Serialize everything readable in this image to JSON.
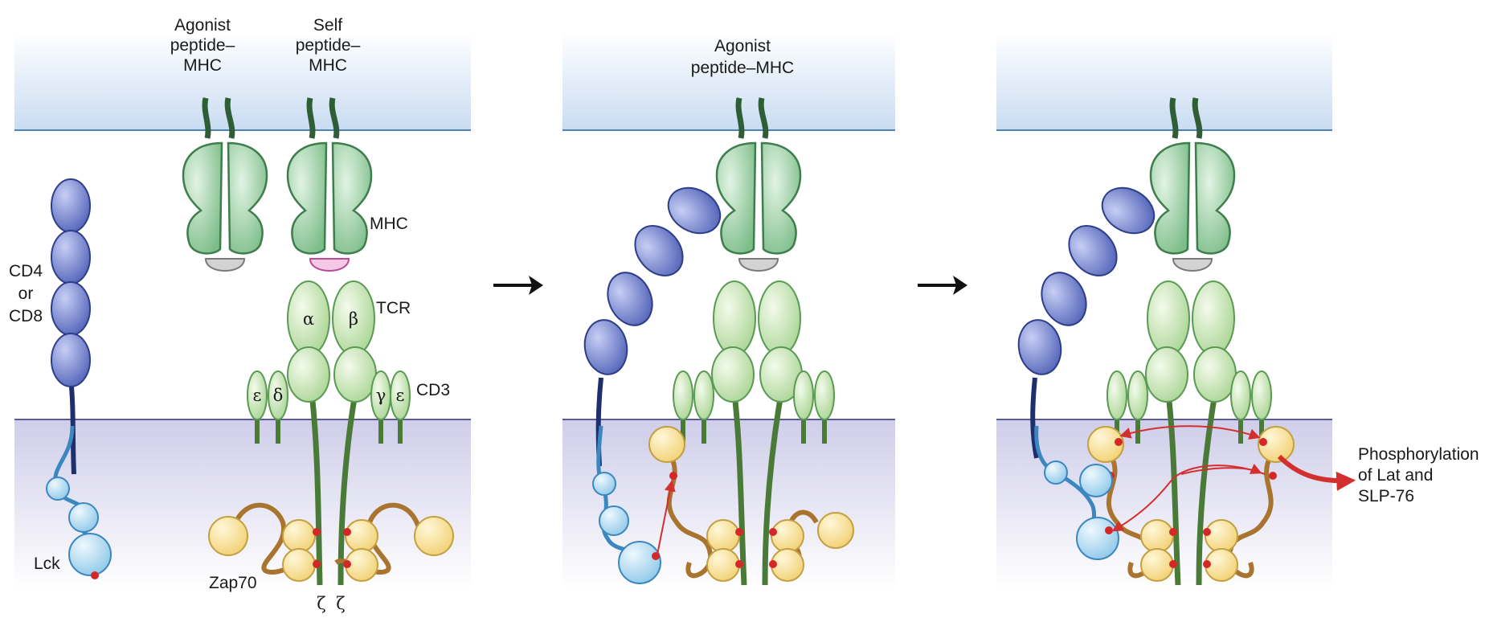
{
  "labels": {
    "agonist_1": [
      "Agonist",
      "peptide–",
      "MHC"
    ],
    "self_1": [
      "Self",
      "peptide–",
      "MHC"
    ],
    "mhc": "MHC",
    "tcr": "TCR",
    "cd3": "CD3",
    "cd4_cd8": [
      "CD4",
      "or",
      "CD8"
    ],
    "lck": "Lck",
    "zap70": "Zap70",
    "alpha": "α",
    "beta": "β",
    "epsilon_left": "ε",
    "delta": "δ",
    "gamma": "γ",
    "epsilon_right": "ε",
    "zeta_1": "ζ",
    "zeta_2": "ζ",
    "agonist_2": [
      "Agonist",
      "peptide–MHC"
    ],
    "phosphorylation": [
      "Phosphorylation",
      "of Lat and",
      "SLP-76"
    ]
  },
  "colors": {
    "membrane_line_top": "#4f83b3",
    "membrane_line_bottom": "#5a5a9a",
    "mhc_fill": "#8fc99a",
    "mhc_stroke": "#3e7d4c",
    "tcr_fill": "#c6e3b0",
    "tcr_stroke": "#5b9a55",
    "stalk": "#4a7a38",
    "coreceptor_fill": "#5b6fbf",
    "coreceptor_stroke": "#2e3d88",
    "lck_fill": "#a9d8f0",
    "lck_stroke": "#3b88c0",
    "zap_fill": "#f7dd8c",
    "zap_stroke": "#c4a042",
    "zap_linker": "#a9742f",
    "phospho": "#d62728",
    "arrow_red": "#d32f2f",
    "self_peptide": "#f5c9e6",
    "agonist_peptide": "#d3d3d3"
  }
}
